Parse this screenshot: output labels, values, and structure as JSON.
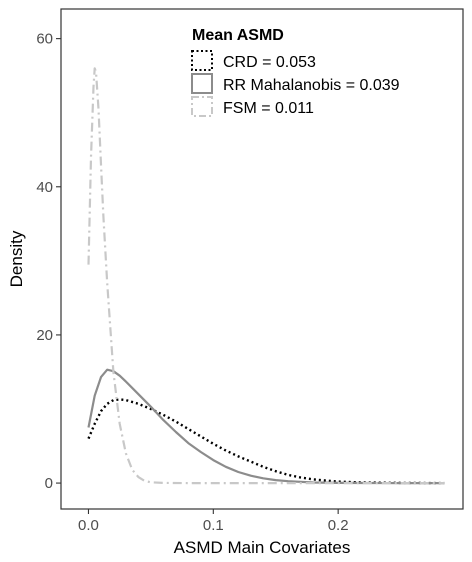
{
  "chart_data": {
    "type": "line",
    "title": "",
    "xlabel": "ASMD Main Covariates",
    "ylabel": "Density",
    "xlim": [
      -0.022,
      0.3
    ],
    "ylim": [
      -3.5,
      64
    ],
    "x_ticks": [
      0.0,
      0.1,
      0.2
    ],
    "x_tick_labels": [
      "0.0",
      "0.1",
      "0.2"
    ],
    "y_ticks": [
      0,
      20,
      40,
      60
    ],
    "y_tick_labels": [
      "0",
      "20",
      "40",
      "60"
    ],
    "grid": false,
    "legend": {
      "title": "Mean ASMD",
      "placement": "top-center",
      "entries": [
        {
          "series": "CRD",
          "label": "CRD",
          "value": "0.053"
        },
        {
          "series": "RR Mahalanobis",
          "label": "RR Mahalanobis",
          "value": "0.039"
        },
        {
          "series": "FSM",
          "label": "FSM",
          "value": "0.011"
        }
      ]
    },
    "series": [
      {
        "name": "CRD",
        "color": "#000000",
        "linestyle": "dotted",
        "x": [
          0.0,
          0.005,
          0.01,
          0.015,
          0.02,
          0.025,
          0.03,
          0.04,
          0.05,
          0.06,
          0.07,
          0.08,
          0.09,
          0.1,
          0.11,
          0.12,
          0.13,
          0.14,
          0.15,
          0.16,
          0.17,
          0.18,
          0.2,
          0.22,
          0.25,
          0.285
        ],
        "y": [
          6.0,
          8.0,
          9.7,
          10.7,
          11.2,
          11.3,
          11.2,
          10.7,
          10.0,
          9.2,
          8.3,
          7.3,
          6.3,
          5.3,
          4.4,
          3.6,
          2.9,
          2.2,
          1.6,
          1.1,
          0.75,
          0.5,
          0.2,
          0.08,
          0.02,
          0.0
        ]
      },
      {
        "name": "RR Mahalanobis",
        "color": "#8c8c8c",
        "linestyle": "solid",
        "x": [
          0.0,
          0.005,
          0.01,
          0.015,
          0.02,
          0.025,
          0.03,
          0.04,
          0.05,
          0.06,
          0.07,
          0.08,
          0.09,
          0.1,
          0.11,
          0.12,
          0.13,
          0.14,
          0.15,
          0.16,
          0.18,
          0.2,
          0.22,
          0.25,
          0.285
        ],
        "y": [
          7.5,
          11.8,
          14.3,
          15.3,
          15.1,
          14.5,
          13.7,
          12.0,
          10.3,
          8.5,
          6.9,
          5.4,
          4.2,
          3.1,
          2.2,
          1.5,
          1.0,
          0.65,
          0.4,
          0.25,
          0.08,
          0.03,
          0.01,
          0.0,
          0.0
        ]
      },
      {
        "name": "FSM",
        "color": "#c8c8c8",
        "linestyle": "dashdot",
        "x": [
          0.0,
          0.002,
          0.004,
          0.005,
          0.006,
          0.008,
          0.01,
          0.012,
          0.015,
          0.02,
          0.025,
          0.03,
          0.035,
          0.04,
          0.045,
          0.05,
          0.06,
          0.08,
          0.1,
          0.15,
          0.2,
          0.285
        ],
        "y": [
          29.5,
          44.0,
          53.5,
          56.0,
          55.5,
          50.5,
          43.0,
          36.0,
          27.0,
          15.0,
          8.0,
          4.0,
          1.8,
          0.8,
          0.3,
          0.1,
          0.02,
          0.0,
          0.0,
          0.0,
          0.0,
          0.0
        ]
      }
    ]
  }
}
